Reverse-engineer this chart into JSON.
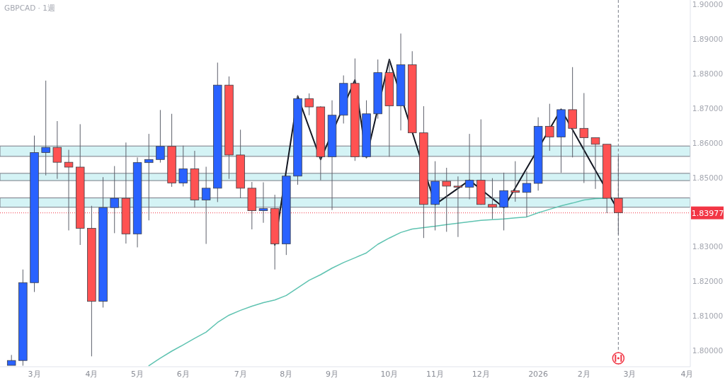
{
  "chart_data": {
    "type": "candlestick",
    "title": "GBPCAD · 1週",
    "x": [
      "2025-02-17",
      "2025-02-24",
      "2025-03-03",
      "2025-03-10",
      "2025-03-17",
      "2025-03-24",
      "2025-03-31",
      "2025-04-07",
      "2025-04-14",
      "2025-04-21",
      "2025-04-28",
      "2025-05-05",
      "2025-05-12",
      "2025-05-19",
      "2025-05-26",
      "2025-06-02",
      "2025-06-09",
      "2025-06-16",
      "2025-06-23",
      "2025-06-30",
      "2025-07-07",
      "2025-07-14",
      "2025-07-21",
      "2025-07-28",
      "2025-08-04",
      "2025-08-11",
      "2025-08-18",
      "2025-08-25",
      "2025-09-01",
      "2025-09-08",
      "2025-09-15",
      "2025-09-22",
      "2025-09-29",
      "2025-10-06",
      "2025-10-13",
      "2025-10-20",
      "2025-10-27",
      "2025-11-03",
      "2025-11-10",
      "2025-11-17",
      "2025-11-24",
      "2025-12-01",
      "2025-12-08",
      "2025-12-15",
      "2025-12-22",
      "2025-12-29",
      "2026-01-05",
      "2026-01-12",
      "2026-01-19",
      "2026-01-26",
      "2026-02-02",
      "2026-02-09",
      "2026-02-16",
      "2026-02-23"
    ],
    "ohlc": [
      [
        1.7957,
        1.7987,
        1.7957,
        1.7971
      ],
      [
        1.7971,
        1.8234,
        1.7956,
        1.8196
      ],
      [
        1.8196,
        1.8621,
        1.8169,
        1.8572
      ],
      [
        1.8572,
        1.878,
        1.8506,
        1.8587
      ],
      [
        1.8587,
        1.8663,
        1.8496,
        1.8544
      ],
      [
        1.8544,
        1.858,
        1.8347,
        1.853
      ],
      [
        1.853,
        1.8654,
        1.8305,
        1.8353
      ],
      [
        1.8353,
        1.8418,
        1.7983,
        1.8142
      ],
      [
        1.8142,
        1.8501,
        1.8124,
        1.8413
      ],
      [
        1.8413,
        1.8533,
        1.8339,
        1.844
      ],
      [
        1.844,
        1.8601,
        1.8309,
        1.8337
      ],
      [
        1.8337,
        1.8558,
        1.8298,
        1.8543
      ],
      [
        1.8543,
        1.8626,
        1.8376,
        1.8552
      ],
      [
        1.8552,
        1.8695,
        1.8543,
        1.859
      ],
      [
        1.859,
        1.8684,
        1.8473,
        1.8484
      ],
      [
        1.8484,
        1.8592,
        1.8474,
        1.8525
      ],
      [
        1.8525,
        1.8577,
        1.8413,
        1.8435
      ],
      [
        1.8435,
        1.8531,
        1.8308,
        1.8469
      ],
      [
        1.8469,
        1.8832,
        1.8429,
        1.8767
      ],
      [
        1.8767,
        1.8792,
        1.8496,
        1.8565
      ],
      [
        1.8565,
        1.8638,
        1.844,
        1.8469
      ],
      [
        1.8469,
        1.8487,
        1.835,
        1.8404
      ],
      [
        1.8404,
        1.8486,
        1.8369,
        1.841
      ],
      [
        1.841,
        1.845,
        1.8234,
        1.8308
      ],
      [
        1.8308,
        1.8506,
        1.8276,
        1.8504
      ],
      [
        1.8504,
        1.8738,
        1.8479,
        1.8728
      ],
      [
        1.8728,
        1.8743,
        1.868,
        1.8704
      ],
      [
        1.8704,
        1.8706,
        1.8492,
        1.856
      ],
      [
        1.856,
        1.8723,
        1.8406,
        1.868
      ],
      [
        1.868,
        1.8795,
        1.8656,
        1.8772
      ],
      [
        1.8772,
        1.8844,
        1.8548,
        1.856
      ],
      [
        1.856,
        1.8723,
        1.8555,
        1.8684
      ],
      [
        1.8684,
        1.8841,
        1.867,
        1.8803
      ],
      [
        1.8803,
        1.8841,
        1.856,
        1.8707
      ],
      [
        1.8707,
        1.8916,
        1.8636,
        1.8826
      ],
      [
        1.8826,
        1.8865,
        1.8628,
        1.8629
      ],
      [
        1.8629,
        1.8706,
        1.8325,
        1.8422
      ],
      [
        1.8422,
        1.8547,
        1.8347,
        1.8489
      ],
      [
        1.8489,
        1.8528,
        1.8343,
        1.8475
      ],
      [
        1.8475,
        1.8503,
        1.8328,
        1.8472
      ],
      [
        1.8472,
        1.8626,
        1.8437,
        1.8492
      ],
      [
        1.8492,
        1.8668,
        1.8421,
        1.8422
      ],
      [
        1.8422,
        1.8498,
        1.838,
        1.8414
      ],
      [
        1.8414,
        1.8514,
        1.8347,
        1.8462
      ],
      [
        1.8462,
        1.8547,
        1.843,
        1.8457
      ],
      [
        1.8457,
        1.8518,
        1.8386,
        1.8483
      ],
      [
        1.8483,
        1.8674,
        1.8462,
        1.8648
      ],
      [
        1.8648,
        1.8713,
        1.8577,
        1.8617
      ],
      [
        1.8617,
        1.8697,
        1.8514,
        1.8696
      ],
      [
        1.8696,
        1.8819,
        1.8558,
        1.8642
      ],
      [
        1.8642,
        1.8744,
        1.8484,
        1.8615
      ],
      [
        1.8615,
        1.8615,
        1.8467,
        1.8596
      ],
      [
        1.8596,
        1.8596,
        1.8397,
        1.844
      ],
      [
        1.844,
        1.8562,
        1.8335,
        1.8398
      ]
    ],
    "colors": [
      "#2962ff",
      "#2962ff",
      "#2962ff",
      "#2962ff",
      "#ff5252",
      "#ff5252",
      "#ff5252",
      "#ff5252",
      "#2962ff",
      "#2962ff",
      "#ff5252",
      "#2962ff",
      "#2962ff",
      "#2962ff",
      "#ff5252",
      "#2962ff",
      "#ff5252",
      "#2962ff",
      "#2962ff",
      "#ff5252",
      "#ff5252",
      "#ff5252",
      "#2962ff",
      "#ff5252",
      "#2962ff",
      "#2962ff",
      "#ff5252",
      "#ff5252",
      "#2962ff",
      "#2962ff",
      "#ff5252",
      "#2962ff",
      "#2962ff",
      "#ff5252",
      "#2962ff",
      "#ff5252",
      "#ff5252",
      "#2962ff",
      "#ff5252",
      "#ff5252",
      "#2962ff",
      "#ff5252",
      "#ff5252",
      "#2962ff",
      "#ff5252",
      "#2962ff",
      "#2962ff",
      "#ff5252",
      "#2962ff",
      "#ff5252",
      "#ff5252",
      "#ff5252",
      "#ff5252",
      "#ff5252"
    ],
    "series": [
      {
        "type": "line",
        "color": "#5fc3b1",
        "x": [
          "2025-05-12",
          "2025-05-19",
          "2025-05-26",
          "2025-06-02",
          "2025-06-09",
          "2025-06-16",
          "2025-06-23",
          "2025-06-30",
          "2025-07-07",
          "2025-07-14",
          "2025-07-21",
          "2025-07-28",
          "2025-08-04",
          "2025-08-11",
          "2025-08-18",
          "2025-08-25",
          "2025-09-01",
          "2025-09-08",
          "2025-09-15",
          "2025-09-22",
          "2025-09-29",
          "2025-10-06",
          "2025-10-13",
          "2025-10-20",
          "2025-10-27",
          "2025-11-03",
          "2025-11-10",
          "2025-11-17",
          "2025-11-24",
          "2025-12-01",
          "2025-12-08",
          "2025-12-15",
          "2025-12-22",
          "2025-12-29",
          "2026-01-05",
          "2026-01-12",
          "2026-01-19",
          "2026-01-26",
          "2026-02-02",
          "2026-02-09",
          "2026-02-16"
        ],
        "values": [
          1.7956,
          1.7978,
          1.7998,
          1.8016,
          1.8035,
          1.8053,
          1.8081,
          1.8102,
          1.8116,
          1.8128,
          1.8138,
          1.8146,
          1.8159,
          1.8181,
          1.8203,
          1.8219,
          1.8238,
          1.8254,
          1.8268,
          1.8282,
          1.8307,
          1.8325,
          1.8341,
          1.8351,
          1.8355,
          1.8359,
          1.8364,
          1.8368,
          1.8372,
          1.8376,
          1.8378,
          1.838,
          1.8383,
          1.8386,
          1.8398,
          1.8408,
          1.8418,
          1.8426,
          1.8435,
          1.8439,
          1.844
        ]
      },
      {
        "type": "line",
        "color": "#131722",
        "x": [
          "2025-07-28",
          "2025-08-11",
          "2025-08-25",
          "2025-09-15",
          "2025-09-22",
          "2025-10-06",
          "2025-11-03",
          "2025-11-24",
          "2025-12-15",
          "2026-01-19",
          "2026-02-23"
        ],
        "values": [
          1.8305,
          1.8735,
          1.8552,
          1.8782,
          1.8558,
          1.8841,
          1.8422,
          1.8492,
          1.8413,
          1.8697,
          1.8403
        ]
      }
    ],
    "bands": [
      {
        "axis": "y",
        "from": 1.8561,
        "to": 1.8591,
        "color": "#d4f3f5"
      },
      {
        "axis": "y",
        "from": 1.8491,
        "to": 1.8512,
        "color": "#d4f3f5"
      },
      {
        "axis": "y",
        "from": 1.8414,
        "to": 1.8441,
        "color": "#d4f3f5"
      }
    ],
    "ref_lines": [
      {
        "axis": "y",
        "value": 1.83977,
        "label": "1.83977",
        "color": "#f23645",
        "line_style": "dotted"
      },
      {
        "axis": "x",
        "value": "2026-02-23",
        "color": "#787b86",
        "line_style": "dashed"
      }
    ],
    "xlim": [
      "2025-02-10",
      "2026-04-08"
    ],
    "xticks": [
      {
        "value": "2025-03-03",
        "label": "3月"
      },
      {
        "value": "2025-04-07",
        "label": "4月"
      },
      {
        "value": "2025-05-05",
        "label": "5月"
      },
      {
        "value": "2025-06-02",
        "label": "6月"
      },
      {
        "value": "2025-07-07",
        "label": "7月"
      },
      {
        "value": "2025-08-04",
        "label": "8月"
      },
      {
        "value": "2025-09-01",
        "label": "9月"
      },
      {
        "value": "2025-10-06",
        "label": "10月"
      },
      {
        "value": "2025-11-03",
        "label": "11月"
      },
      {
        "value": "2025-12-01",
        "label": "12月"
      },
      {
        "value": "2026-01-05",
        "label": "2026"
      },
      {
        "value": "2026-02-02",
        "label": "2月"
      },
      {
        "value": "2026-03-02",
        "label": "3月"
      },
      {
        "value": "2026-04-06",
        "label": "4月"
      }
    ],
    "ylim": [
      1.7953,
      1.9013
    ],
    "yticks": [
      {
        "value": 1.8,
        "label": "1.80000"
      },
      {
        "value": 1.81,
        "label": "1.81000"
      },
      {
        "value": 1.82,
        "label": "1.82000"
      },
      {
        "value": 1.83,
        "label": "1.83000"
      },
      {
        "value": 1.85,
        "label": "1.85000"
      },
      {
        "value": 1.86,
        "label": "1.86000"
      },
      {
        "value": 1.87,
        "label": "1.87000"
      },
      {
        "value": 1.88,
        "label": "1.88000"
      },
      {
        "value": 1.89,
        "label": "1.89000"
      },
      {
        "value": 1.9,
        "label": "1.90000"
      }
    ]
  }
}
